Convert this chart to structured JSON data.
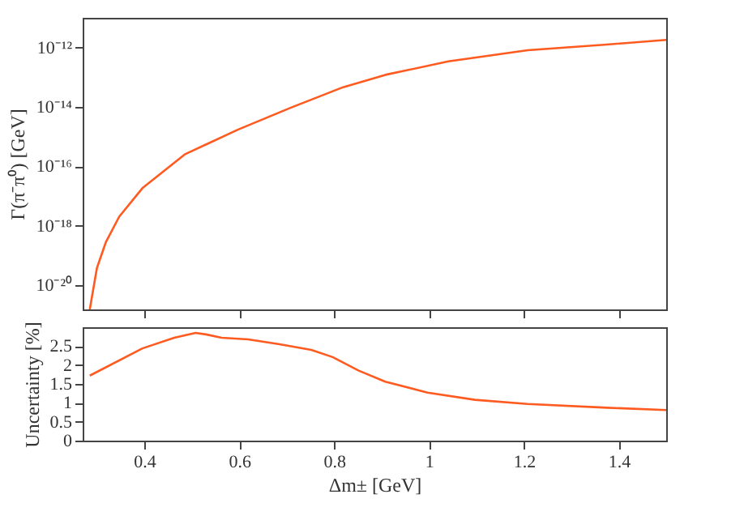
{
  "chart_data": [
    {
      "type": "line",
      "ylabel": "Γ(π⁻π⁰) [GeV]",
      "log": "y",
      "grid": false,
      "tick_labels": "y",
      "line_style": "solid",
      "marker": "none",
      "xlim": [
        0.27,
        1.5
      ],
      "xticks": [
        {
          "value": 0.4,
          "label": null
        },
        {
          "value": 0.6,
          "label": null
        },
        {
          "value": 0.8,
          "label": null
        },
        {
          "value": 1,
          "label": null
        },
        {
          "value": 1.2,
          "label": null
        },
        {
          "value": 1.4,
          "label": null
        }
      ],
      "ylim": [
        1.5e-21,
        1e-11
      ],
      "yticks": [
        {
          "value": 1e-20,
          "label": "10⁻²⁰"
        },
        {
          "value": 1e-18,
          "label": "10⁻¹⁸"
        },
        {
          "value": 1e-16,
          "label": "10⁻¹⁶"
        },
        {
          "value": 1e-14,
          "label": "10⁻¹⁴"
        },
        {
          "value": 1e-12,
          "label": "10⁻¹²"
        }
      ],
      "series": [
        {
          "color": "#ff5a1f",
          "x": [
            0.285,
            0.3,
            0.319,
            0.347,
            0.397,
            0.485,
            0.597,
            0.708,
            0.819,
            0.908,
            1.041,
            1.208,
            1.375,
            1.5
          ],
          "values": [
            1.5e-21,
            3.7e-20,
            2.8e-19,
            2e-18,
            1.9e-17,
            2.5e-16,
            1.7e-15,
            9.3e-15,
            4.6e-14,
            1.2e-13,
            3.4e-13,
            8.1e-13,
            1.26e-12,
            1.8e-12
          ]
        }
      ]
    },
    {
      "type": "line",
      "ylabel": "Uncertainty [%]",
      "xlabel": "Δm± [GeV]",
      "grid": false,
      "line_style": "solid",
      "marker": "none",
      "xlim": [
        0.27,
        1.5
      ],
      "xticks": [
        0.4,
        0.6,
        0.8,
        1,
        1.2,
        1.4
      ],
      "ylim": [
        0,
        3
      ],
      "yticks": [
        0,
        0.5,
        1,
        1.5,
        2,
        2.5
      ],
      "series": [
        {
          "color": "#ff5a1f",
          "x": [
            0.285,
            0.396,
            0.463,
            0.508,
            0.53,
            0.563,
            0.619,
            0.685,
            0.752,
            0.797,
            0.852,
            0.908,
            0.997,
            1.097,
            1.208,
            1.375,
            1.5
          ],
          "values": [
            1.72,
            2.44,
            2.72,
            2.85,
            2.81,
            2.72,
            2.68,
            2.55,
            2.4,
            2.21,
            1.85,
            1.56,
            1.27,
            1.08,
            0.97,
            0.87,
            0.81
          ]
        }
      ]
    }
  ]
}
